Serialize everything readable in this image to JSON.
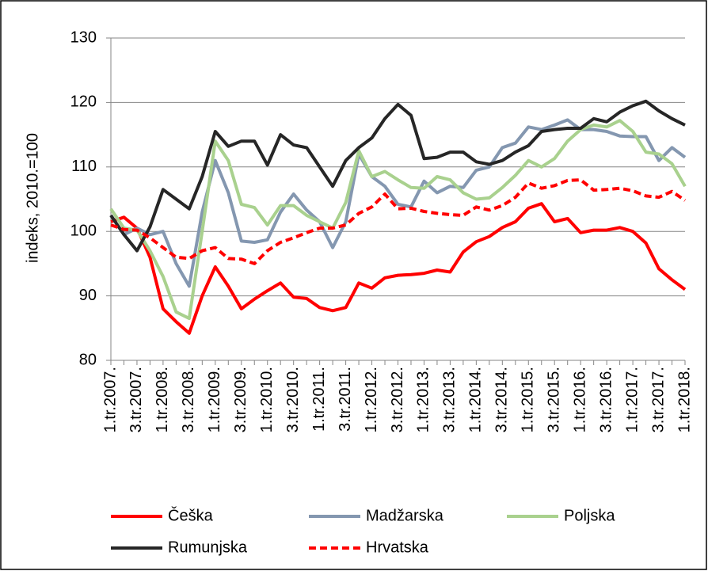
{
  "chart_data": {
    "type": "line",
    "y_label": "indeks, 2010.=100",
    "categories": [
      "1.tr.2007.",
      null,
      "3.tr.2007.",
      null,
      "1.tr.2008.",
      null,
      "3.tr.2008.",
      null,
      "1.tr.2009.",
      null,
      "3.tr.2009.",
      null,
      "1.tr.2010.",
      null,
      "3.tr.2010.",
      null,
      "1.tr.2011.",
      null,
      "3.tr.2011.",
      null,
      "1.tr.2012.",
      null,
      "3.tr.2012.",
      null,
      "1.tr.2013.",
      null,
      "3.tr.2013.",
      null,
      "1.tr.2014.",
      null,
      "3.tr.2014.",
      null,
      "1.tr.2015.",
      null,
      "3.tr.2015.",
      null,
      "1.tr.2016.",
      null,
      "3.tr.2016.",
      null,
      "1.tr.2017.",
      null,
      "3.tr.2017.",
      null,
      "1.tr.2018."
    ],
    "series": [
      {
        "name": "Češka",
        "color": "#ff0000",
        "dashed": false,
        "values": [
          101.5,
          102.2,
          100.5,
          96,
          88,
          86,
          84.2,
          90,
          94.5,
          91.5,
          88,
          89.5,
          90.8,
          92,
          89.8,
          89.6,
          88.2,
          87.7,
          88.2,
          92,
          91.2,
          92.8,
          93.2,
          93.3,
          93.5,
          94,
          93.7,
          96.8,
          98.4,
          99.2,
          100.6,
          101.5,
          103.6,
          104.3,
          101.5,
          102,
          99.8,
          100.2,
          100.2,
          100.6,
          100,
          98.2,
          94.2,
          92.5,
          91
        ]
      },
      {
        "name": "Madžarska",
        "color": "#8497b0",
        "dashed": false,
        "values": [
          102.5,
          99.5,
          100.5,
          99.5,
          100,
          95,
          91.5,
          103,
          111,
          106,
          98.5,
          98.3,
          98.7,
          103,
          105.8,
          103.3,
          101.5,
          97.5,
          101.5,
          112,
          108.5,
          107,
          104.2,
          103.8,
          107.8,
          106,
          107,
          106.8,
          109.5,
          110,
          113,
          113.7,
          116.2,
          115.8,
          116.5,
          117.3,
          115.8,
          115.8,
          115.5,
          114.8,
          114.7,
          114.7,
          111,
          113,
          111.5
        ]
      },
      {
        "name": "Poljska",
        "color": "#a9d18e",
        "dashed": false,
        "values": [
          103.5,
          100.5,
          100.2,
          97,
          93,
          87.5,
          86.5,
          100,
          114,
          111,
          104.2,
          103.7,
          101,
          104,
          104,
          102.5,
          101.5,
          100.5,
          104.5,
          112.5,
          108.5,
          109.3,
          108,
          106.8,
          106.7,
          108.5,
          108,
          106,
          105,
          105.2,
          106.8,
          108.7,
          111,
          110,
          111.3,
          114,
          115.8,
          116.5,
          116.2,
          117.2,
          115.5,
          112.3,
          112,
          110.5,
          107
        ]
      },
      {
        "name": "Rumunjska",
        "color": "#262626",
        "dashed": false,
        "values": [
          102.5,
          99.5,
          97,
          100.7,
          106.5,
          105,
          103.5,
          108.5,
          115.5,
          113.2,
          114,
          114,
          110.3,
          115,
          113.4,
          113,
          110,
          107,
          111,
          113,
          114.5,
          117.5,
          119.7,
          118,
          111.3,
          111.5,
          112.3,
          112.3,
          110.8,
          110.4,
          111,
          112.3,
          113.3,
          115.5,
          115.8,
          116,
          116,
          117.5,
          117,
          118.5,
          119.5,
          120.2,
          118.7,
          117.5,
          116.5
        ]
      },
      {
        "name": "Hrvatska",
        "color": "#ff0000",
        "dashed": true,
        "values": [
          101,
          100.3,
          100.2,
          99,
          97.5,
          96,
          95.8,
          97,
          97.5,
          95.8,
          95.7,
          95,
          97,
          98.3,
          99,
          99.8,
          100.5,
          100.5,
          101,
          102.8,
          103.8,
          105.8,
          103.5,
          103.6,
          103.1,
          102.8,
          102.6,
          102.5,
          103.8,
          103.3,
          104,
          105.3,
          107.5,
          106.7,
          107.1,
          107.9,
          108,
          106.4,
          106.5,
          106.7,
          106.3,
          105.5,
          105.3,
          106.2,
          104.8
        ]
      }
    ],
    "ylim": [
      80,
      130
    ],
    "yticks": [
      80,
      90,
      100,
      110,
      120,
      130
    ],
    "grid": true
  }
}
